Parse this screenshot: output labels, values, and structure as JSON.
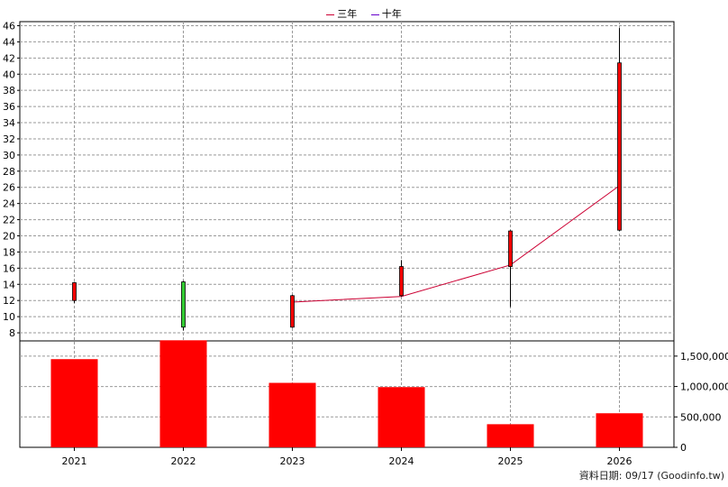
{
  "chart_data": [
    {
      "type": "candlestick",
      "categories": [
        "2021",
        "2022",
        "2023",
        "2024",
        "2025",
        "2026"
      ],
      "candles": [
        {
          "open": 12.0,
          "close": 14.2,
          "low": 11.7,
          "high": 14.3,
          "color": "#ff0000"
        },
        {
          "open": 14.3,
          "close": 8.7,
          "low": 8.3,
          "high": 14.4,
          "color": "#33cc33"
        },
        {
          "open": 8.7,
          "close": 12.6,
          "low": 8.6,
          "high": 12.7,
          "color": "#ff0000"
        },
        {
          "open": 12.6,
          "close": 16.2,
          "low": 12.5,
          "high": 17.0,
          "color": "#ff0000"
        },
        {
          "open": 16.2,
          "close": 20.6,
          "low": 11.2,
          "high": 20.7,
          "color": "#ff0000"
        },
        {
          "open": 20.7,
          "close": 41.4,
          "low": 20.6,
          "high": 45.7,
          "color": "#ff0000"
        }
      ],
      "series": [
        {
          "name": "三年",
          "color": "#cc0033",
          "values": [
            null,
            null,
            11.8,
            12.5,
            16.4,
            26.2
          ]
        },
        {
          "name": "十年",
          "color": "#6600cc",
          "values": [
            null,
            null,
            null,
            null,
            null,
            null
          ]
        }
      ],
      "ylim": [
        7,
        46.5
      ],
      "yticks": [
        8,
        10,
        12,
        14,
        16,
        18,
        20,
        22,
        24,
        26,
        28,
        30,
        32,
        34,
        36,
        38,
        40,
        42,
        44,
        46
      ],
      "grid": true,
      "legend": "top-center"
    },
    {
      "type": "bar",
      "categories": [
        "2021",
        "2022",
        "2023",
        "2024",
        "2025",
        "2026"
      ],
      "values": [
        1450000,
        1760000,
        1060000,
        990000,
        380000,
        560000
      ],
      "color": "#ff0000",
      "ylim": [
        0,
        1750000
      ],
      "ytick_values": [
        0,
        500000,
        1000000,
        1500000
      ],
      "ytick_labels": [
        "0",
        "500,000",
        "1,000,000",
        "1,500,000"
      ],
      "grid": true
    }
  ],
  "legend": {
    "items": [
      {
        "label": "三年",
        "color": "#cc0033"
      },
      {
        "label": "十年",
        "color": "#6600cc"
      }
    ]
  },
  "footer": {
    "source": "資料日期: 09/17  (Goodinfo.tw)"
  }
}
